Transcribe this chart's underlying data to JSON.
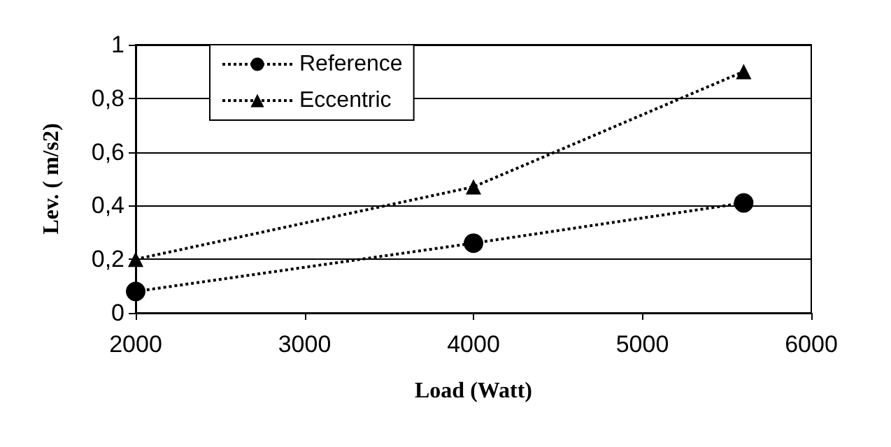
{
  "chart_data": {
    "type": "line",
    "xlabel": "Load (Watt)",
    "ylabel": "Lev. ( m/s2)",
    "x": [
      2000,
      4000,
      5600
    ],
    "series": [
      {
        "name": "Reference",
        "color": "#000000",
        "values": [
          0.08,
          0.26,
          0.41
        ],
        "marker": "circle"
      },
      {
        "name": "Eccentric",
        "color": "#000000",
        "values": [
          0.2,
          0.47,
          0.9
        ],
        "marker": "triangle"
      }
    ],
    "xlim": [
      2000,
      6000
    ],
    "xticks": [
      2000,
      3000,
      4000,
      5000,
      6000
    ],
    "ylim": [
      0,
      1
    ],
    "yticks": [
      0,
      {
        "value": 0.2,
        "label": "0,2"
      },
      {
        "value": 0.4,
        "label": "0,4"
      },
      {
        "value": 0.6,
        "label": "0,6"
      },
      {
        "value": 0.8,
        "label": "0,8"
      },
      1
    ],
    "grid": "y",
    "legend": "top left",
    "line_style": "dotted"
  }
}
